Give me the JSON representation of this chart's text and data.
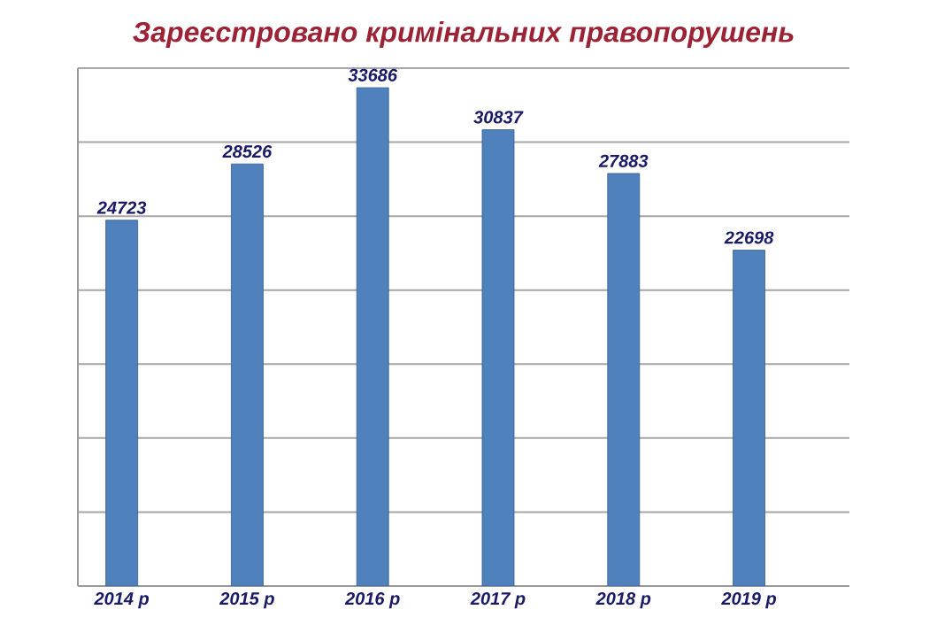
{
  "chart_data": {
    "type": "bar",
    "title": "Зареєстровано кримінальних правопорушень",
    "categories": [
      "2014 р",
      "2015 р",
      "2016 р",
      "2017 р",
      "2018 р",
      "2019 р"
    ],
    "values": [
      24723,
      28526,
      33686,
      30837,
      27883,
      22698
    ],
    "color": "#4f81bd",
    "data_labels": true,
    "grid": "y",
    "tick_labels": "x",
    "ylim": [
      0,
      35000
    ],
    "yticks": [
      {
        "value": 0,
        "label": null
      },
      {
        "value": 5000,
        "label": null
      },
      {
        "value": 10000,
        "label": null
      },
      {
        "value": 15000,
        "label": null
      },
      {
        "value": 20000,
        "label": null
      },
      {
        "value": 25000,
        "label": null
      },
      {
        "value": 30000,
        "label": null
      },
      {
        "value": 35000,
        "label": null
      }
    ]
  }
}
